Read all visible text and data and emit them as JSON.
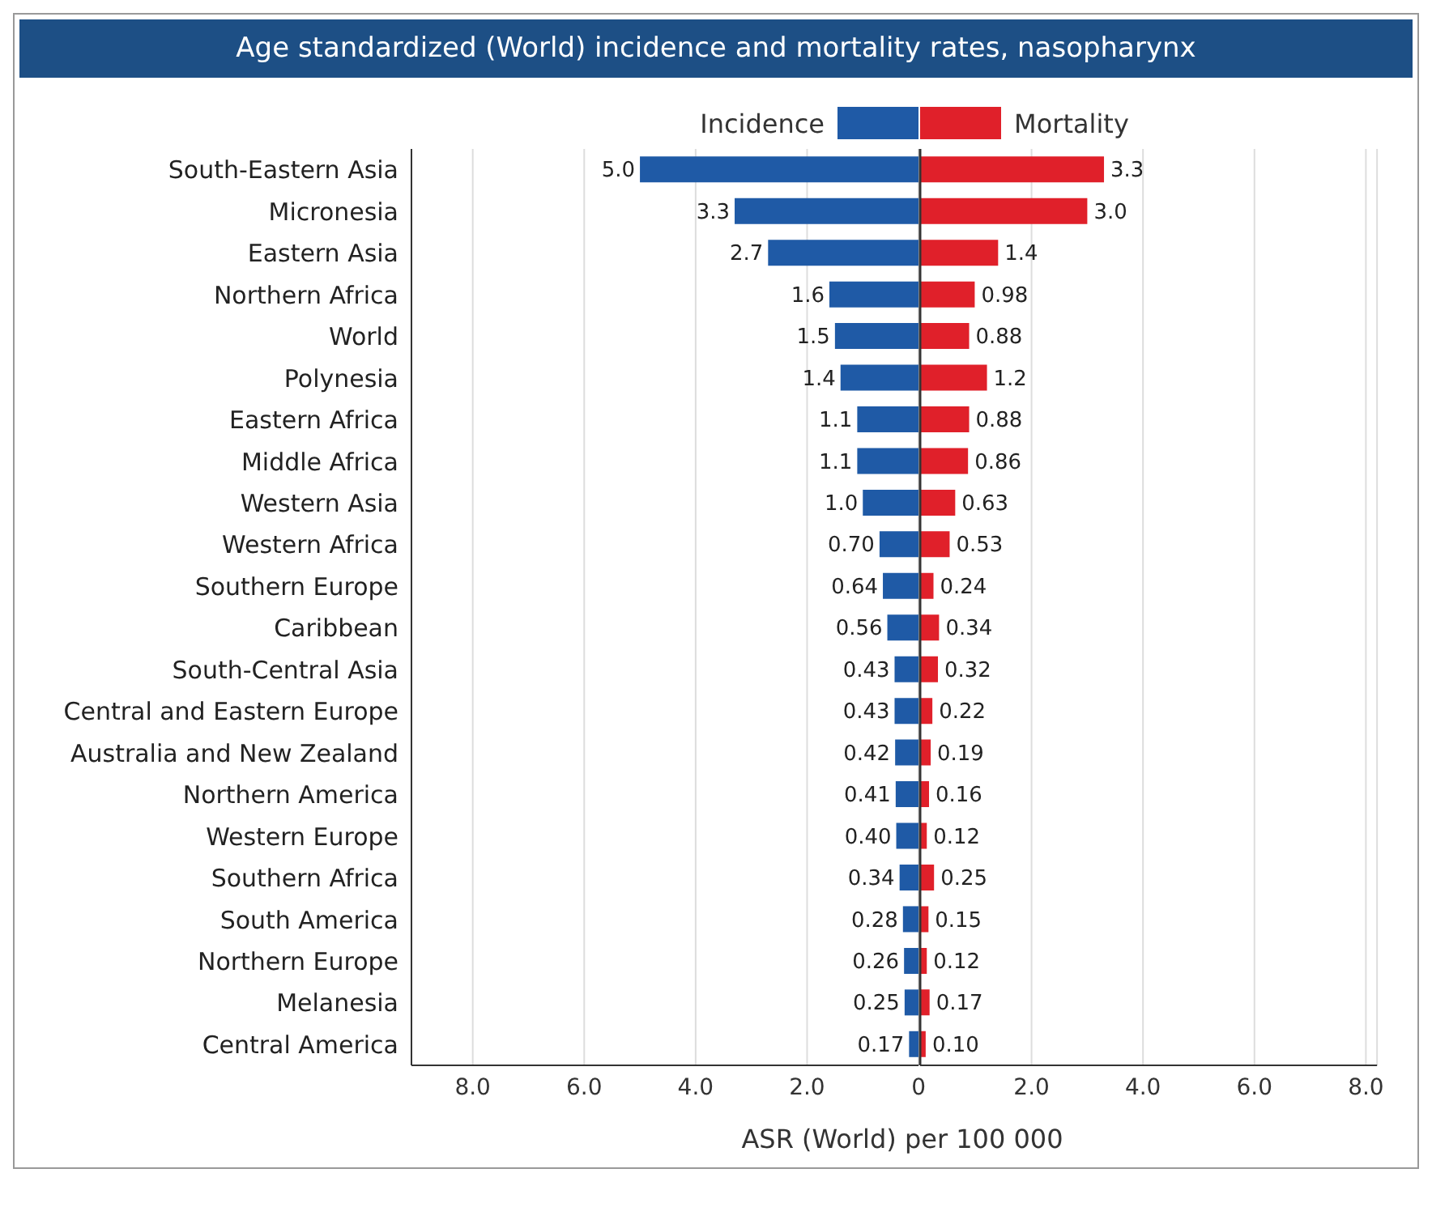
{
  "chart_data": [
    {
      "type": "bar",
      "orientation": "horizontal",
      "title": "Age standardized (World) incidence and mortality rates, nasopharynx",
      "xlabel": "ASR (World) per 100 000",
      "categories": [
        "South-Eastern Asia",
        "Micronesia",
        "Eastern Asia",
        "Northern Africa",
        "World",
        "Polynesia",
        "Eastern Africa",
        "Middle Africa",
        "Western Asia",
        "Western Africa",
        "Southern Europe",
        "Caribbean",
        "South-Central Asia",
        "Central and Eastern Europe",
        "Australia and New Zealand",
        "Northern America",
        "Western Europe",
        "Southern Africa",
        "South America",
        "Northern Europe",
        "Melanesia",
        "Central America"
      ],
      "series": [
        {
          "name": "Incidence",
          "color": "#1f5aa6",
          "values": [
            5.0,
            3.3,
            2.7,
            1.6,
            1.5,
            1.4,
            1.1,
            1.1,
            1.0,
            0.7,
            0.64,
            0.56,
            0.43,
            0.43,
            0.42,
            0.41,
            0.4,
            0.34,
            0.28,
            0.26,
            0.25,
            0.17
          ],
          "value_labels": [
            "5.0",
            "3.3",
            "2.7",
            "1.6",
            "1.5",
            "1.4",
            "1.1",
            "1.1",
            "1.0",
            "0.70",
            "0.64",
            "0.56",
            "0.43",
            "0.43",
            "0.42",
            "0.41",
            "0.40",
            "0.34",
            "0.28",
            "0.26",
            "0.25",
            "0.17"
          ]
        }
      ],
      "xlim": [
        9.1,
        0
      ],
      "xticks": [
        {
          "value": 8,
          "label": "8.0"
        },
        {
          "value": 6,
          "label": "6.0"
        },
        {
          "value": 4,
          "label": "4.0"
        },
        {
          "value": 2,
          "label": "2.0"
        },
        0
      ],
      "grid": "x",
      "legend": "top"
    },
    {
      "type": "bar",
      "orientation": "horizontal",
      "series": [
        {
          "name": "Mortality",
          "color": "#e0202a",
          "values": [
            3.3,
            3.0,
            1.4,
            0.98,
            0.88,
            1.2,
            0.88,
            0.86,
            0.63,
            0.53,
            0.24,
            0.34,
            0.32,
            0.22,
            0.19,
            0.16,
            0.12,
            0.25,
            0.15,
            0.12,
            0.17,
            0.1
          ],
          "value_labels": [
            "3.3",
            "3.0",
            "1.4",
            "0.98",
            "0.88",
            "1.2",
            "0.88",
            "0.86",
            "0.63",
            "0.53",
            "0.24",
            "0.34",
            "0.32",
            "0.22",
            "0.19",
            "0.16",
            "0.12",
            "0.25",
            "0.15",
            "0.12",
            "0.17",
            "0.10"
          ]
        }
      ],
      "xlim": [
        0,
        8.2
      ],
      "xticks": [
        {
          "value": 0,
          "label": null
        },
        {
          "value": 2,
          "label": "2.0"
        },
        {
          "value": 4,
          "label": "4.0"
        },
        {
          "value": 6,
          "label": "6.0"
        },
        {
          "value": 8,
          "label": "8.0"
        }
      ],
      "grid": "x",
      "legend": "top",
      "tick_labels": "x"
    }
  ]
}
